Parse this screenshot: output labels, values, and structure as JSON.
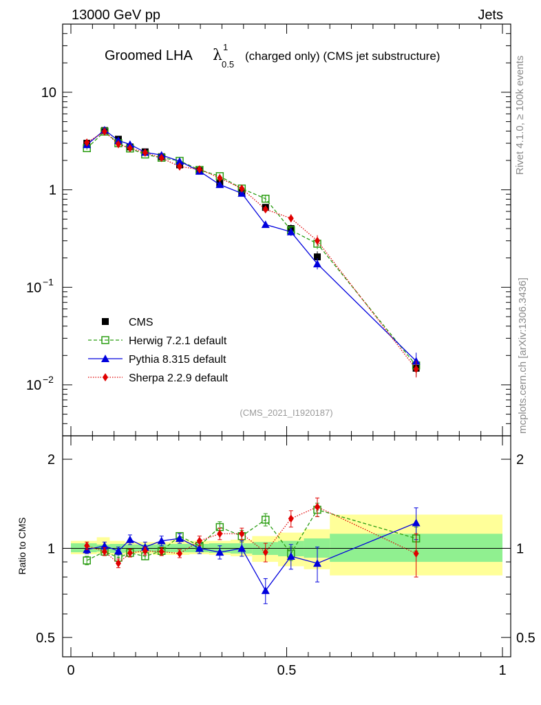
{
  "header": {
    "energy": "13000 GeV pp",
    "category": "Jets",
    "title_main": "Groomed LHA",
    "title_symbol": "λ",
    "title_sup": "1",
    "title_sub": "0.5",
    "title_suffix": "(charged only) (CMS jet substructure)",
    "rivet_label": "Rivet 4.1.0, ≥ 100k events",
    "mcplots_label": "mcplots.cern.ch [arXiv:1306.3436]",
    "analysis_id": "(CMS_2021_I1920187)"
  },
  "ratio_ylabel": "Ratio to CMS",
  "colors": {
    "cms": "#000000",
    "herwig": "#2a9d12",
    "pythia": "#0000dd",
    "sherpa": "#e00000",
    "band_inner": "#90f090",
    "band_outer": "#ffff99"
  },
  "chart_data": [
    {
      "type": "scatter",
      "scale": "log",
      "ylim": [
        0.003,
        50
      ],
      "xlim": [
        0,
        1
      ],
      "yticks": [
        {
          "v": 10,
          "label": "10"
        },
        {
          "v": 1,
          "label": "1"
        },
        {
          "v": 0.1,
          "base": "10",
          "exp": "−1"
        },
        {
          "v": 0.01,
          "base": "10",
          "exp": "−2"
        }
      ],
      "x": [
        0.037,
        0.078,
        0.11,
        0.137,
        0.172,
        0.21,
        0.252,
        0.298,
        0.345,
        0.396,
        0.451,
        0.51,
        0.571,
        0.8
      ],
      "series": [
        {
          "key": "cms",
          "name": "CMS",
          "values": [
            3.0,
            4.05,
            3.3,
            2.75,
            2.45,
            2.18,
            1.8,
            1.57,
            1.17,
            0.94,
            0.66,
            0.4,
            0.205,
            0.0148
          ]
        },
        {
          "key": "herwig",
          "name": "Herwig 7.2.1 default",
          "values": [
            2.67,
            3.95,
            3.0,
            2.65,
            2.3,
            2.13,
            1.98,
            1.6,
            1.38,
            1.03,
            0.81,
            0.385,
            0.28,
            0.0158
          ]
        },
        {
          "key": "pythia",
          "name": "Pythia 8.315 default",
          "values": [
            2.9,
            4.1,
            3.2,
            2.92,
            2.42,
            2.27,
            1.96,
            1.55,
            1.13,
            0.92,
            0.44,
            0.37,
            0.174,
            0.0175
          ]
        },
        {
          "key": "sherpa",
          "name": "Sherpa 2.2.9 default",
          "values": [
            3.05,
            3.95,
            2.93,
            2.67,
            2.4,
            2.12,
            1.73,
            1.62,
            1.32,
            1.03,
            0.63,
            0.51,
            0.3,
            0.0145
          ]
        }
      ]
    },
    {
      "type": "ratio",
      "scale": "log",
      "ylim": [
        0.43,
        2.4
      ],
      "xlim": [
        0,
        1
      ],
      "yticks": [
        {
          "v": 0.5,
          "label": "0.5"
        },
        {
          "v": 1,
          "label": "1"
        },
        {
          "v": 2,
          "label": "2"
        }
      ],
      "xticks": [
        {
          "v": 0,
          "label": "0"
        },
        {
          "v": 0.5,
          "label": "0.5"
        },
        {
          "v": 1,
          "label": "1"
        }
      ],
      "x": [
        0.037,
        0.078,
        0.11,
        0.137,
        0.172,
        0.21,
        0.252,
        0.298,
        0.345,
        0.396,
        0.451,
        0.51,
        0.571,
        0.8
      ],
      "bands": {
        "edges": [
          0,
          0.06,
          0.09,
          0.125,
          0.15,
          0.19,
          0.23,
          0.275,
          0.32,
          0.37,
          0.42,
          0.48,
          0.54,
          0.6,
          1.0
        ],
        "inner": [
          [
            0.97,
            1.04
          ],
          [
            0.975,
            1.03
          ],
          [
            0.965,
            1.035
          ],
          [
            0.97,
            1.03
          ],
          [
            0.975,
            1.03
          ],
          [
            0.97,
            1.03
          ],
          [
            0.97,
            1.035
          ],
          [
            0.97,
            1.035
          ],
          [
            0.965,
            1.04
          ],
          [
            0.96,
            1.04
          ],
          [
            0.95,
            1.05
          ],
          [
            0.94,
            1.06
          ],
          [
            0.93,
            1.08
          ],
          [
            0.9,
            1.12
          ]
        ],
        "outer": [
          [
            0.955,
            1.06
          ],
          [
            0.96,
            1.09
          ],
          [
            0.95,
            1.06
          ],
          [
            0.955,
            1.05
          ],
          [
            0.96,
            1.05
          ],
          [
            0.95,
            1.05
          ],
          [
            0.95,
            1.07
          ],
          [
            0.955,
            1.06
          ],
          [
            0.95,
            1.06
          ],
          [
            0.94,
            1.07
          ],
          [
            0.9,
            1.1
          ],
          [
            0.87,
            1.13
          ],
          [
            0.85,
            1.16
          ],
          [
            0.81,
            1.3
          ]
        ]
      },
      "series": [
        {
          "key": "herwig",
          "name": "Herwig 7.2.1 default",
          "values": [
            0.91,
            0.975,
            0.93,
            0.965,
            0.94,
            0.98,
            1.1,
            1.02,
            1.18,
            1.1,
            1.25,
            0.96,
            1.35,
            1.08
          ],
          "errors": [
            0.03,
            0.03,
            0.025,
            0.025,
            0.025,
            0.03,
            0.03,
            0.04,
            0.05,
            0.05,
            0.06,
            0.05,
            0.07,
            0.1
          ]
        },
        {
          "key": "pythia",
          "name": "Pythia 8.315 default",
          "values": [
            0.99,
            1.02,
            0.98,
            1.07,
            1.01,
            1.06,
            1.08,
            1.0,
            0.97,
            1.0,
            0.72,
            0.94,
            0.89,
            1.22
          ],
          "errors": [
            0.03,
            0.03,
            0.03,
            0.04,
            0.04,
            0.04,
            0.04,
            0.04,
            0.05,
            0.06,
            0.07,
            0.09,
            0.12,
            0.15
          ]
        },
        {
          "key": "sherpa",
          "name": "Sherpa 2.2.9 default",
          "values": [
            1.02,
            0.975,
            0.89,
            0.965,
            0.98,
            0.975,
            0.96,
            1.06,
            1.12,
            1.12,
            0.97,
            1.26,
            1.38,
            0.96
          ],
          "errors": [
            0.03,
            0.03,
            0.03,
            0.03,
            0.03,
            0.03,
            0.03,
            0.04,
            0.05,
            0.05,
            0.07,
            0.08,
            0.1,
            0.16
          ]
        }
      ]
    }
  ],
  "legend": [
    {
      "key": "cms",
      "label": "CMS"
    },
    {
      "key": "herwig",
      "label": "Herwig 7.2.1 default"
    },
    {
      "key": "pythia",
      "label": "Pythia 8.315 default"
    },
    {
      "key": "sherpa",
      "label": "Sherpa 2.2.9 default"
    }
  ]
}
